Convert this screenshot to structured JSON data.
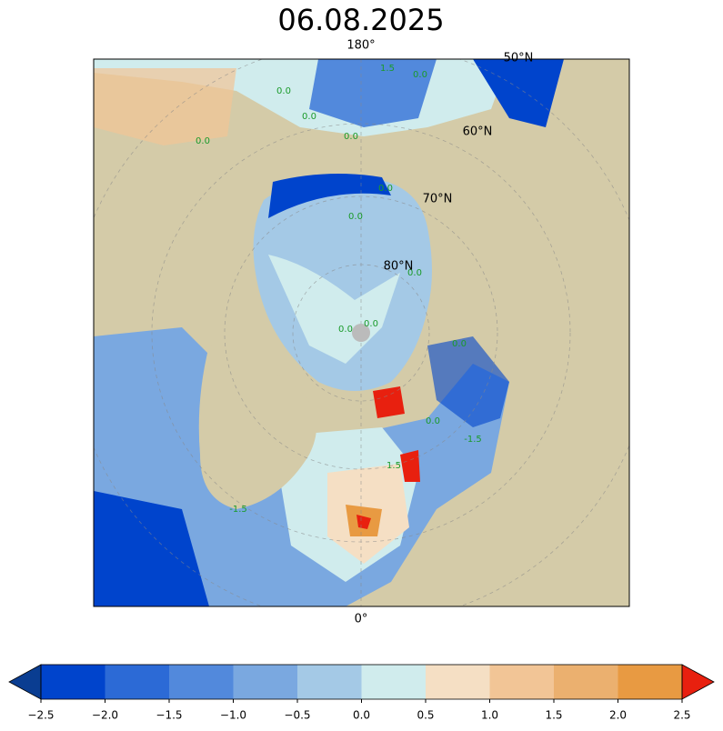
{
  "title": "06.08.2025",
  "map": {
    "meridian_labels": [
      "180°",
      "0°"
    ],
    "parallel_labels": [
      "50°N",
      "60°N",
      "70°N",
      "80°N"
    ],
    "contour_labels": [
      "0.0",
      "0.0",
      "0.0",
      "0.0",
      "0.0",
      "0.0",
      "0.0",
      "0.0",
      "0.0",
      "0.0",
      "0.0",
      "0.0",
      "-1.5",
      "-1.5",
      "1.5",
      "1.5"
    ],
    "land_color": "#d4cba8",
    "pole_color": "#bbbbbb"
  },
  "colorbar": {
    "ticks": [
      {
        "value": -2.5,
        "label": "−2.5"
      },
      {
        "value": -2.0,
        "label": "−2.0"
      },
      {
        "value": -1.5,
        "label": "−1.5"
      },
      {
        "value": -1.0,
        "label": "−1.0"
      },
      {
        "value": -0.5,
        "label": "−0.5"
      },
      {
        "value": 0.0,
        "label": "0.0"
      },
      {
        "value": 0.5,
        "label": "0.5"
      },
      {
        "value": 1.0,
        "label": "1.0"
      },
      {
        "value": 1.5,
        "label": "1.5"
      },
      {
        "value": 2.0,
        "label": "2.0"
      },
      {
        "value": 2.5,
        "label": "2.5"
      }
    ],
    "colors": [
      "#0044cc",
      "#2c6ad6",
      "#5289dc",
      "#7aa8e0",
      "#a4c9e6",
      "#d0eced",
      "#f5dfc4",
      "#f2c596",
      "#ebb06f",
      "#e89a42"
    ],
    "under_color": "#0a3d91",
    "over_color": "#e8200f"
  }
}
